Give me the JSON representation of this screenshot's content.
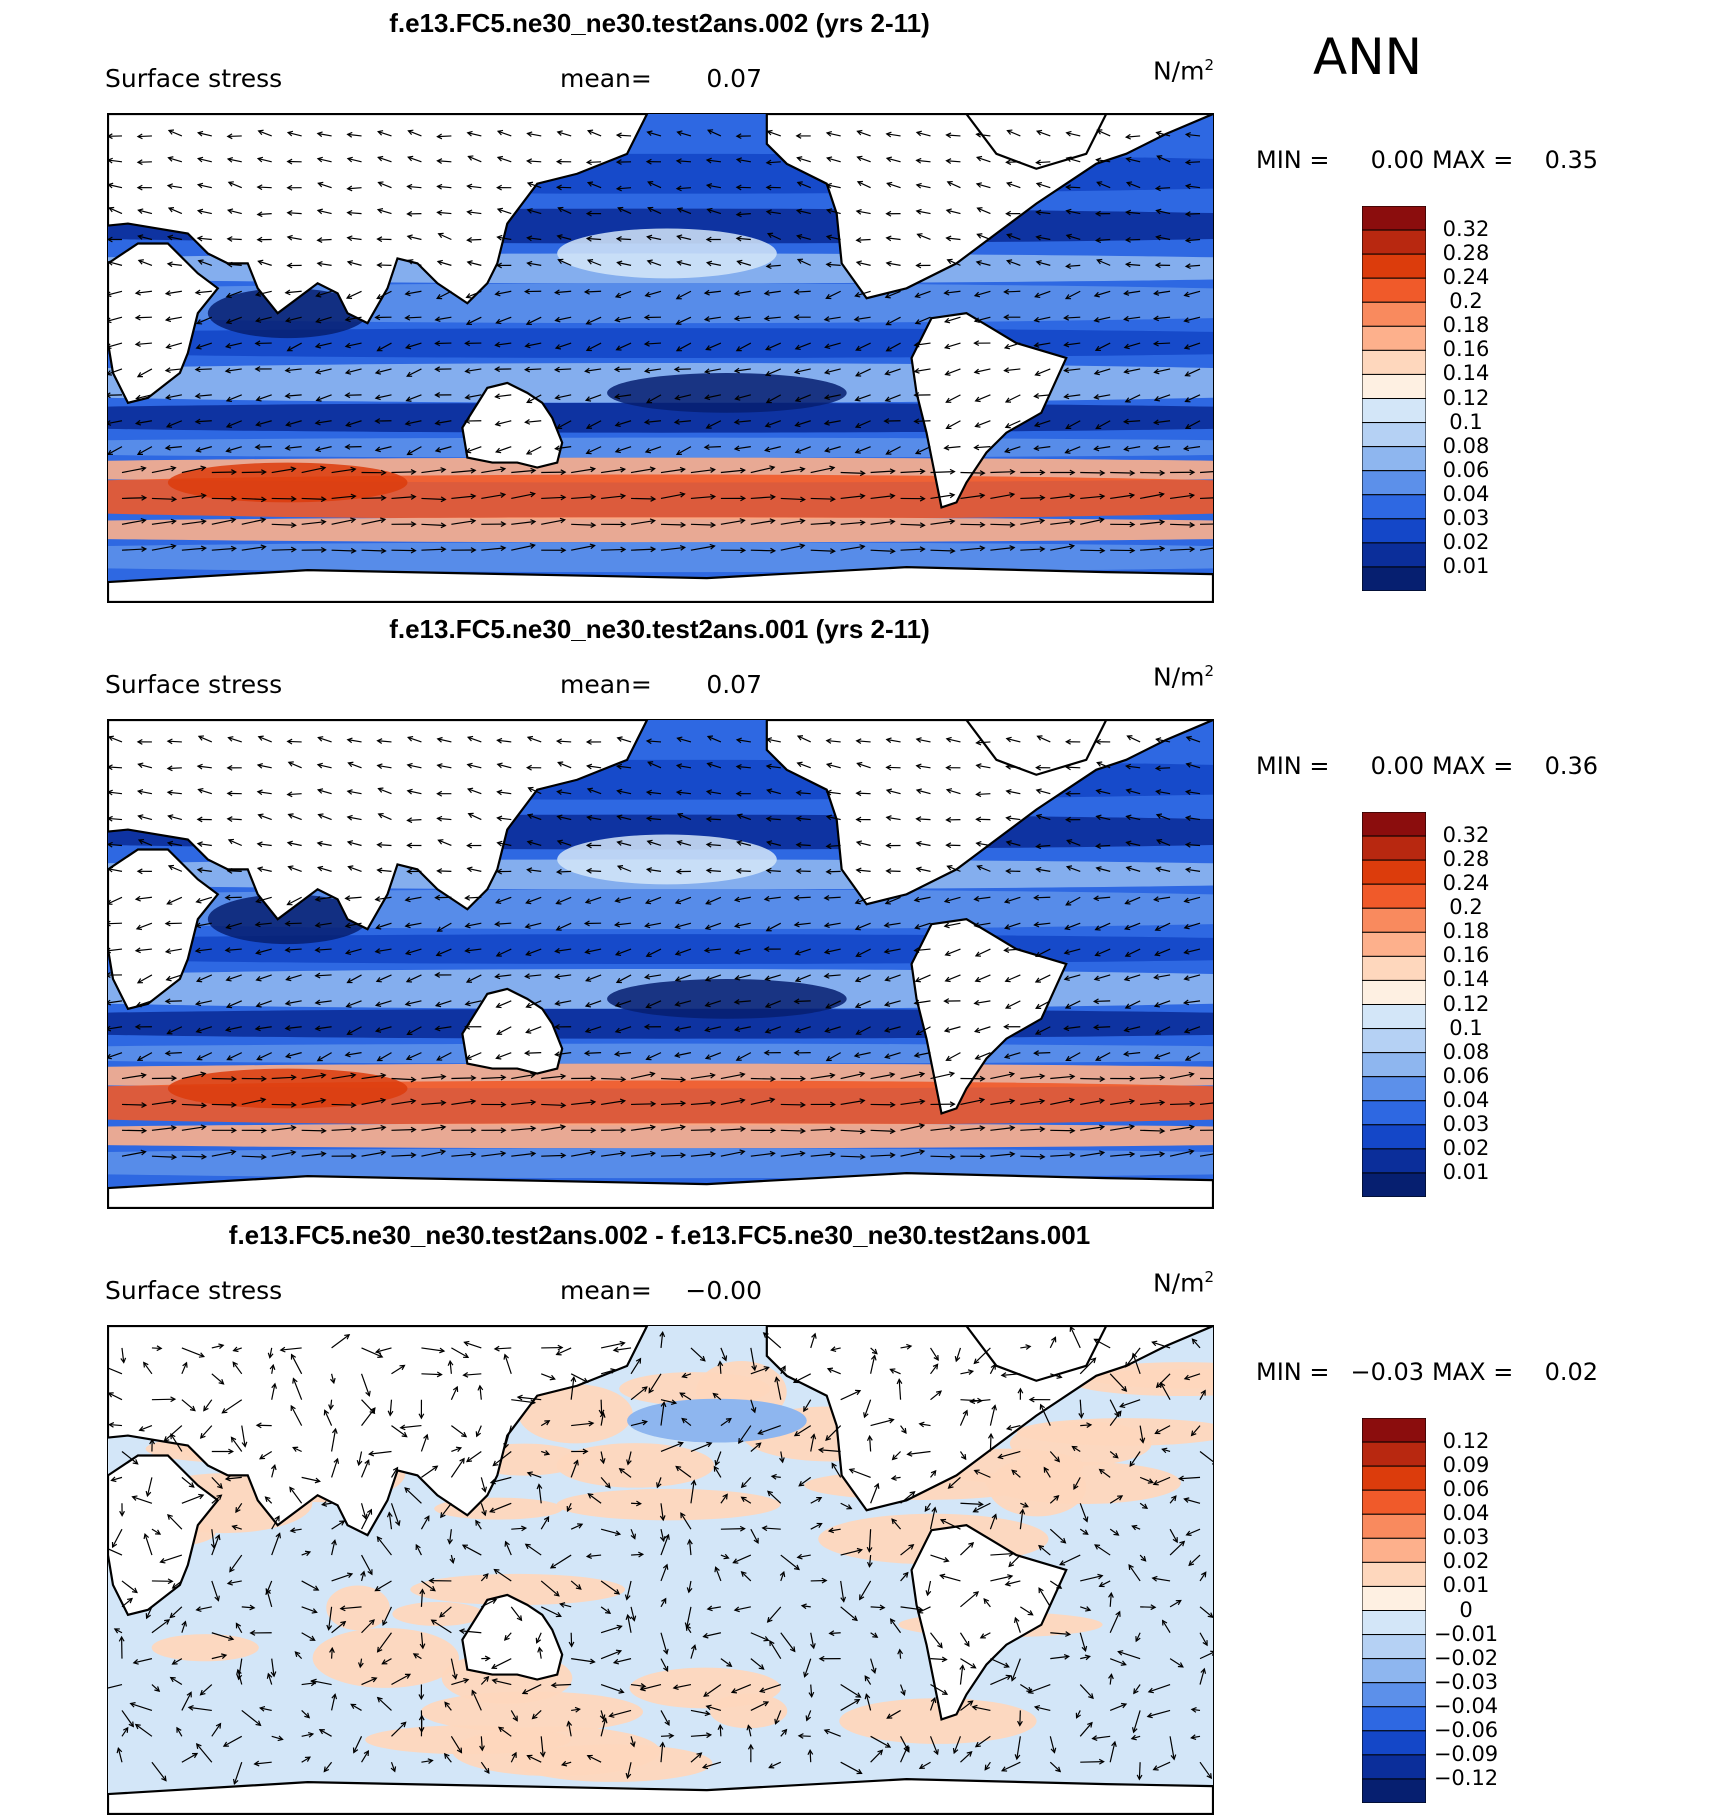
{
  "season": "ANN",
  "panels": [
    {
      "title": "f.e13.FC5.ne30_ne30.test2ans.002 (yrs 2-11)",
      "variable": "Surface stress",
      "mean_label": "mean=",
      "mean_value": "0.07",
      "units": "N/m",
      "units_exp": "2",
      "min_label": "MIN =",
      "min_value": "0.00",
      "max_label": "MAX =",
      "max_value": "0.35",
      "colorbar": {
        "labels": [
          "0.32",
          "0.28",
          "0.24",
          "0.2",
          "0.18",
          "0.16",
          "0.14",
          "0.12",
          "0.1",
          "0.08",
          "0.06",
          "0.04",
          "0.03",
          "0.02",
          "0.01"
        ],
        "colors": [
          "#8b0d0d",
          "#b82810",
          "#dc3c0c",
          "#f05a2a",
          "#f98a5e",
          "#fdb08c",
          "#fed7bd",
          "#fef0e2",
          "#d3e6f8",
          "#b5d1f4",
          "#8eb6ef",
          "#5c90ea",
          "#2e68e2",
          "#1447c8",
          "#0b2e9a",
          "#061f70"
        ]
      },
      "kind": "abs"
    },
    {
      "title": "f.e13.FC5.ne30_ne30.test2ans.001 (yrs 2-11)",
      "variable": "Surface stress",
      "mean_label": "mean=",
      "mean_value": "0.07",
      "units": "N/m",
      "units_exp": "2",
      "min_label": "MIN =",
      "min_value": "0.00",
      "max_label": "MAX =",
      "max_value": "0.36",
      "colorbar": {
        "labels": [
          "0.32",
          "0.28",
          "0.24",
          "0.2",
          "0.18",
          "0.16",
          "0.14",
          "0.12",
          "0.1",
          "0.08",
          "0.06",
          "0.04",
          "0.03",
          "0.02",
          "0.01"
        ],
        "colors": [
          "#8b0d0d",
          "#b82810",
          "#dc3c0c",
          "#f05a2a",
          "#f98a5e",
          "#fdb08c",
          "#fed7bd",
          "#fef0e2",
          "#d3e6f8",
          "#b5d1f4",
          "#8eb6ef",
          "#5c90ea",
          "#2e68e2",
          "#1447c8",
          "#0b2e9a",
          "#061f70"
        ]
      },
      "kind": "abs"
    },
    {
      "title": "f.e13.FC5.ne30_ne30.test2ans.002 - f.e13.FC5.ne30_ne30.test2ans.001",
      "variable": "Surface stress",
      "mean_label": "mean=",
      "mean_value": "−0.00",
      "units": "N/m",
      "units_exp": "2",
      "min_label": "MIN =",
      "min_value": "−0.03",
      "max_label": "MAX =",
      "max_value": "0.02",
      "colorbar": {
        "labels": [
          "0.12",
          "0.09",
          "0.06",
          "0.04",
          "0.03",
          "0.02",
          "0.01",
          "0",
          "−0.01",
          "−0.02",
          "−0.03",
          "−0.04",
          "−0.06",
          "−0.09",
          "−0.12"
        ],
        "colors": [
          "#8b0d0d",
          "#b82810",
          "#dc3c0c",
          "#f05a2a",
          "#f98a5e",
          "#fdb08c",
          "#fed7bd",
          "#fef0e2",
          "#d3e6f8",
          "#b5d1f4",
          "#8eb6ef",
          "#5c90ea",
          "#2e68e2",
          "#1447c8",
          "#0b2e9a",
          "#061f70"
        ]
      },
      "kind": "diff"
    }
  ]
}
